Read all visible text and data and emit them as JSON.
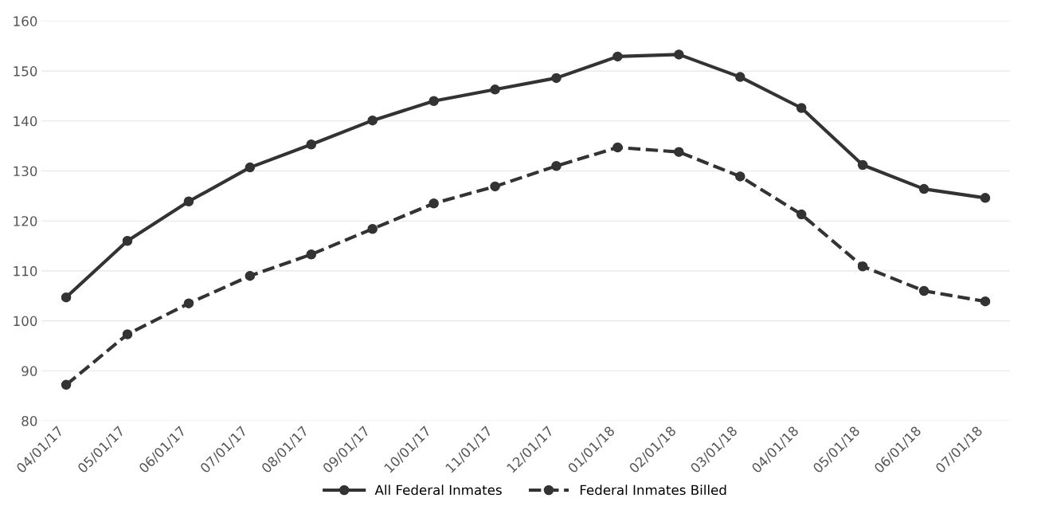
{
  "chart_data": {
    "type": "line",
    "categories": [
      "04/01/17",
      "05/01/17",
      "06/01/17",
      "07/01/17",
      "08/01/17",
      "09/01/17",
      "10/01/17",
      "11/01/17",
      "12/01/17",
      "01/01/18",
      "02/01/18",
      "03/01/18",
      "04/01/18",
      "05/01/18",
      "06/01/18",
      "07/01/18"
    ],
    "series": [
      {
        "name": "All Federal Inmates",
        "color": "#333333",
        "line_style": "solid",
        "values": [
          104.7,
          116.0,
          123.9,
          130.7,
          135.3,
          140.1,
          144.0,
          146.3,
          148.6,
          152.9,
          153.3,
          148.8,
          142.6,
          131.2,
          126.4,
          124.6
        ]
      },
      {
        "name": "Federal Inmates Billed",
        "color": "#333333",
        "line_style": "dashed",
        "values": [
          87.2,
          97.3,
          103.5,
          109.0,
          113.3,
          118.4,
          123.5,
          126.9,
          131.0,
          134.7,
          133.8,
          128.9,
          121.3,
          110.9,
          106.0,
          103.9
        ]
      }
    ],
    "ylim": [
      80,
      160
    ],
    "yticks": [
      80,
      90,
      100,
      110,
      120,
      130,
      140,
      150,
      160
    ],
    "grid": "y",
    "legend": "bottom",
    "marker": "circle"
  }
}
